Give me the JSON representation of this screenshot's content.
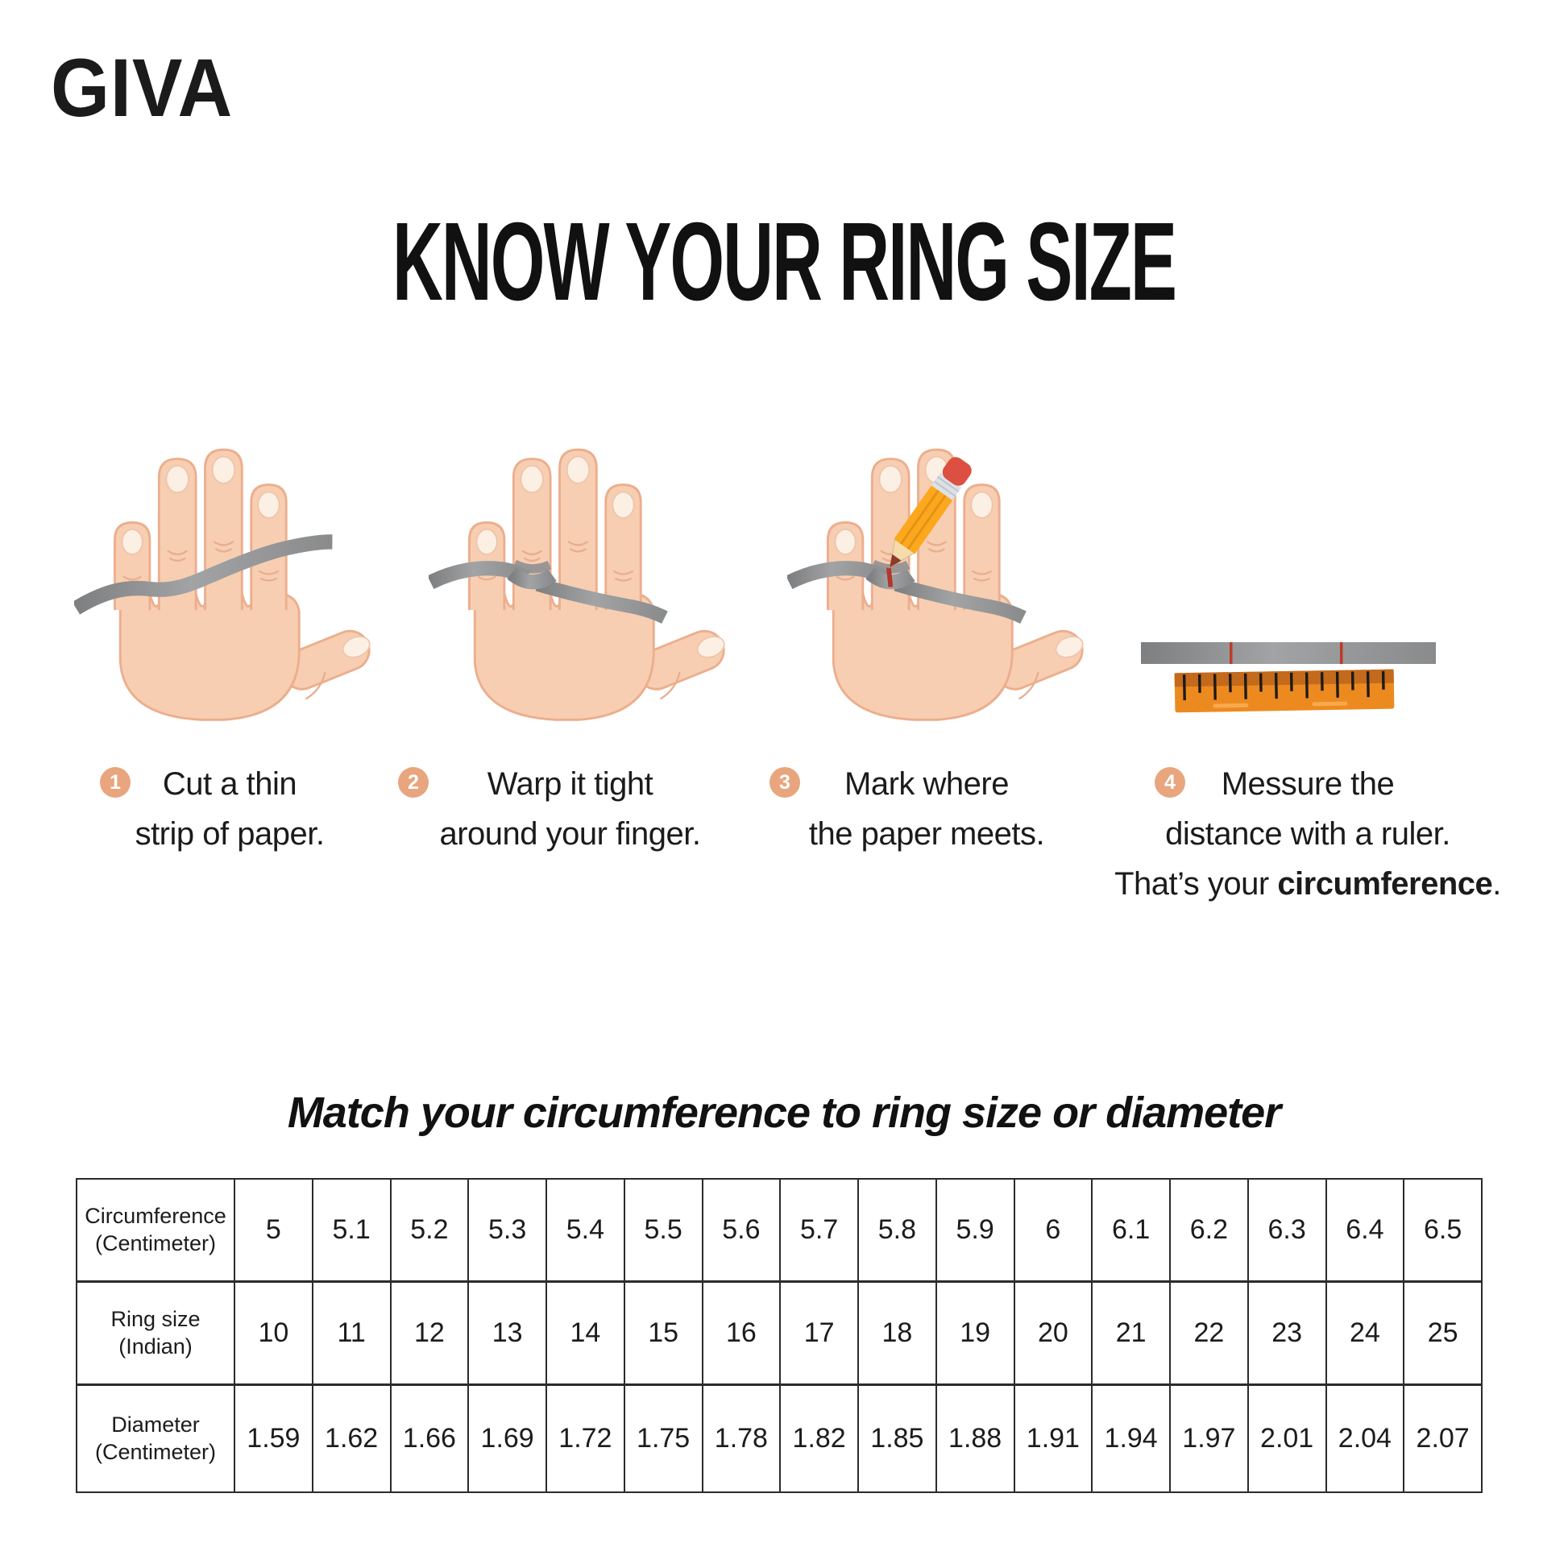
{
  "brand": {
    "logo": "GIVA"
  },
  "title": "KNOW YOUR RING SIZE",
  "steps": [
    {
      "number": "1",
      "line1": "Cut a thin",
      "line2": "strip of paper."
    },
    {
      "number": "2",
      "line1": "Warp it tight",
      "line2": "around your finger."
    },
    {
      "number": "3",
      "line1": "Mark where",
      "line2": "the paper meets."
    },
    {
      "number": "4",
      "line1": "Messure the",
      "line2": "distance with a ruler.",
      "line3_prefix": "That’s your ",
      "line3_bold": "circumference",
      "line3_suffix": "."
    }
  ],
  "illustrations": {
    "step1": "hand-with-loose-paper-strip",
    "step2": "hand-strip-wrapped-around-ring-finger",
    "step3": "hand-pencil-marking-strip",
    "step4": "marked-paper-strip-and-ruler"
  },
  "subtitle": "Match your circumference to ring size or diameter",
  "table": {
    "rows": [
      {
        "header_line1": "Circumference",
        "header_line2": "(Centimeter)",
        "values": [
          "5",
          "5.1",
          "5.2",
          "5.3",
          "5.4",
          "5.5",
          "5.6",
          "5.7",
          "5.8",
          "5.9",
          "6",
          "6.1",
          "6.2",
          "6.3",
          "6.4",
          "6.5"
        ]
      },
      {
        "header_line1": "Ring size",
        "header_line2": "(Indian)",
        "values": [
          "10",
          "11",
          "12",
          "13",
          "14",
          "15",
          "16",
          "17",
          "18",
          "19",
          "20",
          "21",
          "22",
          "23",
          "24",
          "25"
        ]
      },
      {
        "header_line1": "Diameter",
        "header_line2": "(Centimeter)",
        "values": [
          "1.59",
          "1.62",
          "1.66",
          "1.69",
          "1.72",
          "1.75",
          "1.78",
          "1.82",
          "1.85",
          "1.88",
          "1.91",
          "1.94",
          "1.97",
          "2.01",
          "2.04",
          "2.07"
        ]
      }
    ]
  },
  "colors": {
    "badge": "#E8A57E",
    "skin": "#F7CEB2",
    "skin_outline": "#ECAE8D",
    "paper_strip_gray": "#8F9091",
    "mark_red": "#B3362C",
    "ruler_orange": "#ED8A1F",
    "ruler_band": "#C36A1C",
    "text": "#1A1A1A"
  }
}
